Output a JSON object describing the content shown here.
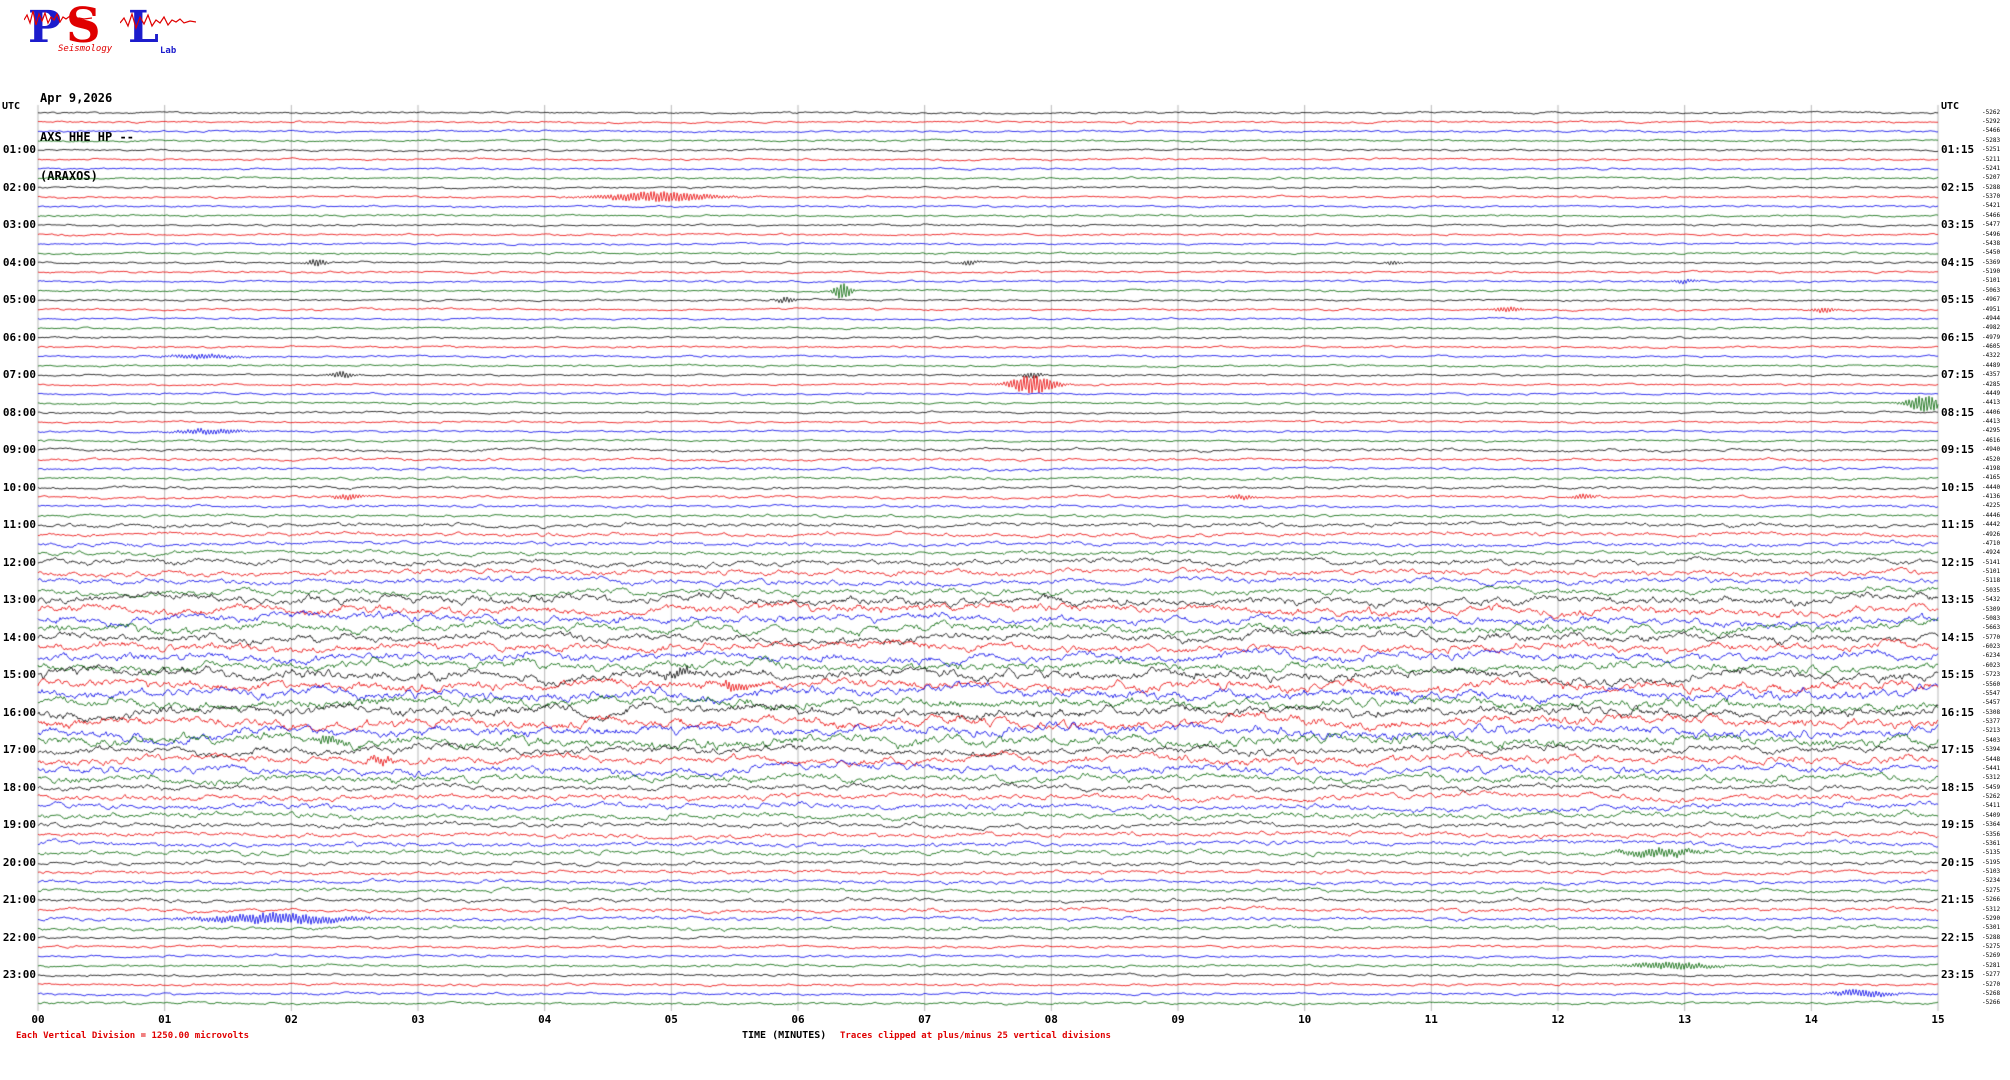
{
  "logo": {
    "letters": [
      "P",
      "S",
      "L"
    ],
    "subtext1": "Seismology",
    "subtext2": "Lab"
  },
  "header": {
    "date": "Apr 9,2026",
    "station": "AXS HHE HP --",
    "location": "(ARAXOS)"
  },
  "axis": {
    "left_utc": "UTC",
    "right_utc": "UTC",
    "x_title": "TIME (MINUTES)",
    "x_ticks": [
      "00",
      "01",
      "02",
      "03",
      "04",
      "05",
      "06",
      "07",
      "08",
      "09",
      "10",
      "11",
      "12",
      "13",
      "14",
      "15"
    ]
  },
  "footer": {
    "scale_note": "Each Vertical Division = 1250.00 microvolts",
    "clip_note": "Traces clipped at plus/minus 25 vertical divisions"
  },
  "chart_data": {
    "type": "line",
    "variant": "helicorder",
    "title": "AXS HHE HP -- (ARAXOS) Apr 9,2026",
    "rows": 96,
    "minutes_per_row": 15,
    "x_range": [
      0,
      15
    ],
    "grid": "vertical-every-minute",
    "colors_cycle": [
      "#000000",
      "#e80000",
      "#0000e8",
      "#006400"
    ],
    "left_hour_labels": [
      "01:00",
      "02:00",
      "03:00",
      "04:00",
      "05:00",
      "06:00",
      "07:00",
      "08:00",
      "09:00",
      "10:00",
      "11:00",
      "12:00",
      "13:00",
      "14:00",
      "15:00",
      "16:00",
      "17:00",
      "18:00",
      "19:00",
      "20:00",
      "21:00",
      "22:00",
      "23:00"
    ],
    "right_hour_labels": [
      "01:15",
      "02:15",
      "03:15",
      "04:15",
      "05:15",
      "06:15",
      "07:15",
      "08:15",
      "09:15",
      "10:15",
      "11:15",
      "12:15",
      "13:15",
      "14:15",
      "15:15",
      "16:15",
      "17:15",
      "18:15",
      "19:15",
      "20:15",
      "21:15",
      "22:15",
      "23:15"
    ],
    "amplitudes": [
      0.9,
      0.9,
      0.9,
      0.9,
      0.9,
      0.9,
      0.9,
      0.9,
      0.9,
      0.9,
      0.9,
      0.9,
      0.9,
      0.9,
      0.9,
      0.9,
      0.9,
      0.9,
      0.9,
      0.9,
      0.9,
      0.9,
      0.9,
      0.9,
      0.9,
      0.9,
      0.9,
      0.9,
      0.9,
      0.9,
      0.9,
      0.9,
      0.9,
      0.9,
      0.9,
      0.9,
      1.2,
      1.2,
      1.2,
      1.2,
      1.2,
      1.2,
      1.2,
      1.2,
      1.7,
      1.7,
      1.7,
      1.7,
      2.4,
      2.4,
      2.4,
      2.4,
      3.2,
      3.2,
      3.2,
      3.2,
      3.2,
      3.2,
      3.2,
      3.2,
      3.6,
      3.6,
      3.6,
      3.6,
      3.6,
      3.6,
      3.6,
      3.6,
      3.0,
      3.0,
      3.0,
      3.0,
      2.4,
      2.4,
      2.4,
      2.4,
      2.0,
      2.0,
      2.0,
      2.0,
      1.6,
      1.6,
      1.6,
      1.6,
      1.6,
      1.6,
      1.6,
      1.6,
      1.1,
      1.1,
      1.1,
      1.1,
      1.1,
      1.1,
      1.1,
      1.1
    ],
    "trace_offsets": [
      -5262,
      -5292,
      -5466,
      -5283,
      -5251,
      -5211,
      -5241,
      -5207,
      -5288,
      -5370,
      -5421,
      -5466,
      -5477,
      -5496,
      -5438,
      -5450,
      -5369,
      -5190,
      -5101,
      -5063,
      -4967,
      -4951,
      -4944,
      -4982,
      -4979,
      -4605,
      -4322,
      -4489,
      -4357,
      -4285,
      -4449,
      -4413,
      -4406,
      -4413,
      -4295,
      -4616,
      -4940,
      -4520,
      -4198,
      -4165,
      -4440,
      -4136,
      -4225,
      -4446,
      -4442,
      -4926,
      -4710,
      -4924,
      -5141,
      -5101,
      -5118,
      -5035,
      -5432,
      -5309,
      -5083,
      -5663,
      -5770,
      -6023,
      -6234,
      -6023,
      -5723,
      -5560,
      -5547,
      -5457,
      -5308,
      -5377,
      -5213,
      -5403,
      -5394,
      -5448,
      -5441,
      -5312,
      -5459,
      -5262,
      -5411,
      -5409,
      -5364,
      -5356,
      -5361,
      -5135,
      -5195,
      -5103,
      -5234,
      -5275,
      -5266,
      -5312,
      -5290,
      -5301,
      -5288,
      -5275,
      -5269,
      -5281,
      -5277,
      -5270,
      -5268,
      -5266
    ],
    "events": [
      {
        "row": 9,
        "minute": 4.9,
        "amp": 5,
        "width": 0.45
      },
      {
        "row": 16,
        "minute": 2.2,
        "amp": 3.5,
        "width": 0.08
      },
      {
        "row": 16,
        "minute": 7.35,
        "amp": 2.5,
        "width": 0.07
      },
      {
        "row": 16,
        "minute": 10.7,
        "amp": 2.0,
        "width": 0.07
      },
      {
        "row": 18,
        "minute": 13.0,
        "amp": 2.0,
        "width": 0.1
      },
      {
        "row": 19,
        "minute": 6.35,
        "amp": 8,
        "width": 0.07
      },
      {
        "row": 20,
        "minute": 5.9,
        "amp": 3,
        "width": 0.08
      },
      {
        "row": 21,
        "minute": 11.6,
        "amp": 2.5,
        "width": 0.12
      },
      {
        "row": 21,
        "minute": 14.1,
        "amp": 2.5,
        "width": 0.1
      },
      {
        "row": 26,
        "minute": 1.3,
        "amp": 2.2,
        "width": 0.3
      },
      {
        "row": 28,
        "minute": 2.4,
        "amp": 3.2,
        "width": 0.1
      },
      {
        "row": 28,
        "minute": 7.85,
        "amp": 2.8,
        "width": 0.08
      },
      {
        "row": 29,
        "minute": 7.85,
        "amp": 9,
        "width": 0.18
      },
      {
        "row": 31,
        "minute": 14.9,
        "amp": 8,
        "width": 0.15
      },
      {
        "row": 34,
        "minute": 1.35,
        "amp": 2.5,
        "width": 0.3
      },
      {
        "row": 41,
        "minute": 2.45,
        "amp": 3,
        "width": 0.12
      },
      {
        "row": 41,
        "minute": 9.5,
        "amp": 2.5,
        "width": 0.1
      },
      {
        "row": 41,
        "minute": 12.2,
        "amp": 2.5,
        "width": 0.1
      },
      {
        "row": 60,
        "minute": 5.05,
        "amp": 4,
        "width": 0.15
      },
      {
        "row": 61,
        "minute": 5.5,
        "amp": 4,
        "width": 0.12
      },
      {
        "row": 67,
        "minute": 2.3,
        "amp": 4,
        "width": 0.12
      },
      {
        "row": 69,
        "minute": 2.7,
        "amp": 4,
        "width": 0.1
      },
      {
        "row": 79,
        "minute": 12.8,
        "amp": 4,
        "width": 0.3
      },
      {
        "row": 86,
        "minute": 1.9,
        "amp": 5,
        "width": 0.6
      },
      {
        "row": 91,
        "minute": 12.9,
        "amp": 3.5,
        "width": 0.35
      },
      {
        "row": 94,
        "minute": 14.4,
        "amp": 3.5,
        "width": 0.25
      }
    ]
  }
}
